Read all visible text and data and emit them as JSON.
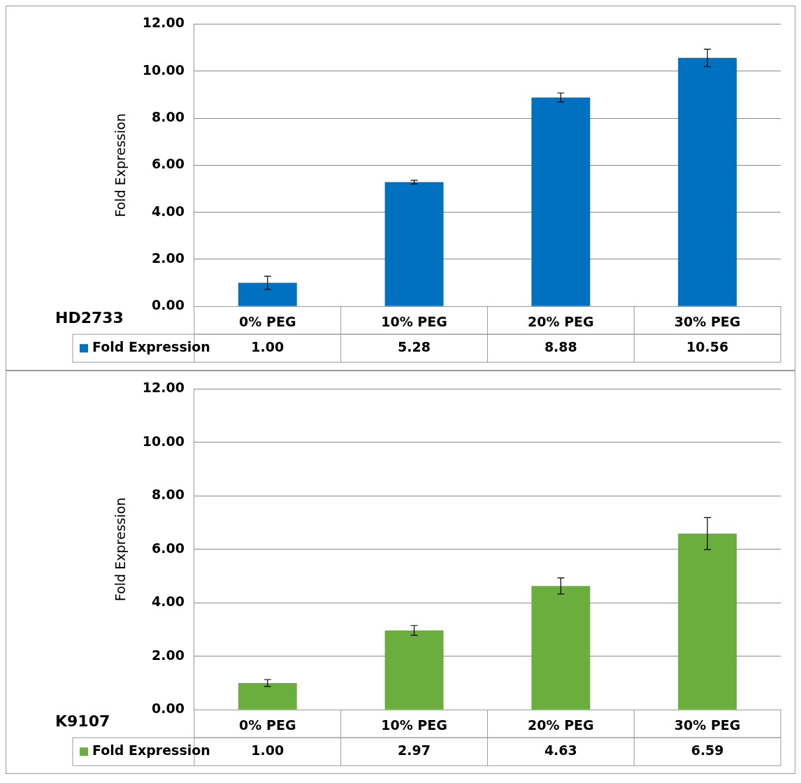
{
  "chart_data": [
    {
      "type": "bar",
      "title": "HD2733",
      "ylabel": "Fold Expression",
      "categories": [
        "0% PEG",
        "10% PEG",
        "20% PEG",
        "30% PEG"
      ],
      "series": [
        {
          "name": "Fold Expression",
          "color": "#0070c0",
          "values": [
            1.0,
            5.28,
            8.88,
            10.56
          ],
          "value_labels": [
            "1.00",
            "5.28",
            "8.88",
            "10.56"
          ],
          "errors": [
            0.28,
            0.08,
            0.19,
            0.37
          ]
        }
      ],
      "ylim": [
        0,
        12
      ],
      "yticks": [
        {
          "value": 0,
          "label": "0.00"
        },
        {
          "value": 2,
          "label": "2.00"
        },
        {
          "value": 4,
          "label": "4.00"
        },
        {
          "value": 6,
          "label": "6.00"
        },
        {
          "value": 8,
          "label": "8.00"
        },
        {
          "value": 10,
          "label": "10.00"
        },
        {
          "value": 12,
          "label": "12.00"
        }
      ],
      "grid": "y",
      "legend": "bottom left"
    },
    {
      "type": "bar",
      "title": "K9107",
      "ylabel": "Fold Expression",
      "categories": [
        "0% PEG",
        "10% PEG",
        "20% PEG",
        "30% PEG"
      ],
      "series": [
        {
          "name": "Fold Expression",
          "color": "#6aae3e",
          "values": [
            1.0,
            2.97,
            4.63,
            6.59
          ],
          "value_labels": [
            "1.00",
            "2.97",
            "4.63",
            "6.59"
          ],
          "errors": [
            0.13,
            0.18,
            0.3,
            0.6
          ]
        }
      ],
      "ylim": [
        0,
        12
      ],
      "yticks": [
        {
          "value": 0,
          "label": "0.00"
        },
        {
          "value": 2,
          "label": "2.00"
        },
        {
          "value": 4,
          "label": "4.00"
        },
        {
          "value": 6,
          "label": "6.00"
        },
        {
          "value": 8,
          "label": "8.00"
        },
        {
          "value": 10,
          "label": "10.00"
        },
        {
          "value": 12,
          "label": "12.00"
        }
      ],
      "grid": "y",
      "legend": "bottom left"
    }
  ]
}
